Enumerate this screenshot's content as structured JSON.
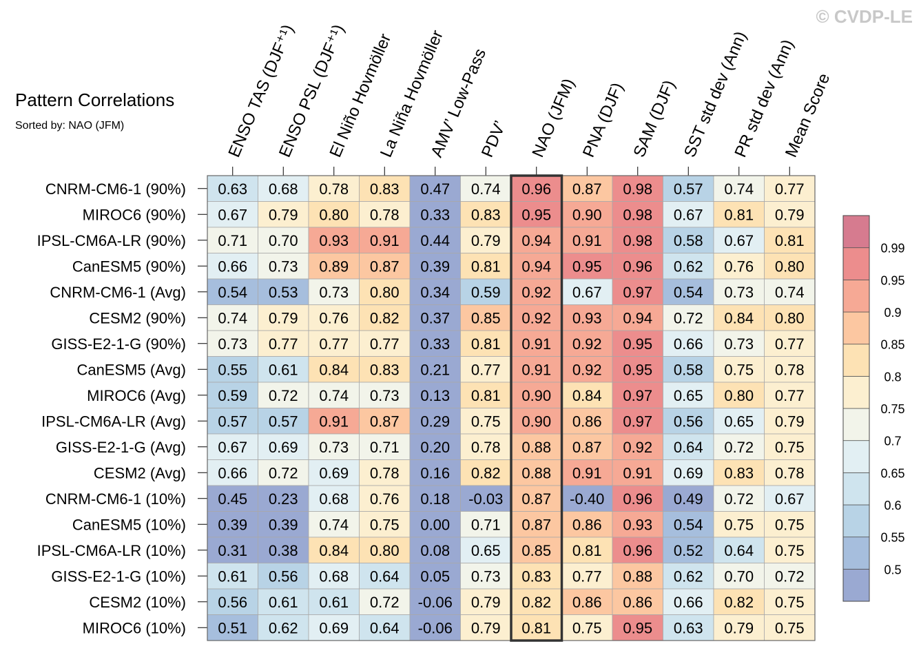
{
  "watermark": "© CVDP-LE",
  "chart_data": {
    "type": "heatmap",
    "title": "Pattern Correlations",
    "subtitle": "Sorted by: NAO (JFM)",
    "highlight_column": "NAO (JFM)",
    "columns": [
      "ENSO TAS (DJF⁺¹)",
      "ENSO PSL (DJF⁺¹)",
      "El Niño Hovmöller",
      "La Niña Hovmöller",
      "AMV’ Low-Pass",
      "PDV’",
      "NAO (JFM)",
      "PNA (DJF)",
      "SAM (DJF)",
      "SST std dev (Ann)",
      "PR std dev (Ann)",
      "Mean Score"
    ],
    "rows": [
      "CNRM-CM6-1 (90%)",
      "MIROC6 (90%)",
      "IPSL-CM6A-LR (90%)",
      "CanESM5 (90%)",
      "CNRM-CM6-1 (Avg)",
      "CESM2 (90%)",
      "GISS-E2-1-G (90%)",
      "CanESM5 (Avg)",
      "MIROC6 (Avg)",
      "IPSL-CM6A-LR (Avg)",
      "GISS-E2-1-G (Avg)",
      "CESM2 (Avg)",
      "CNRM-CM6-1 (10%)",
      "CanESM5 (10%)",
      "IPSL-CM6A-LR (10%)",
      "GISS-E2-1-G (10%)",
      "CESM2 (10%)",
      "MIROC6 (10%)"
    ],
    "values": [
      [
        "0.63",
        "0.68",
        "0.78",
        "0.83",
        "0.47",
        "0.74",
        "0.96",
        "0.87",
        "0.98",
        "0.57",
        "0.74",
        "0.77"
      ],
      [
        "0.67",
        "0.79",
        "0.80",
        "0.78",
        "0.33",
        "0.83",
        "0.95",
        "0.90",
        "0.98",
        "0.67",
        "0.81",
        "0.79"
      ],
      [
        "0.71",
        "0.70",
        "0.93",
        "0.91",
        "0.44",
        "0.79",
        "0.94",
        "0.91",
        "0.98",
        "0.58",
        "0.67",
        "0.81"
      ],
      [
        "0.66",
        "0.73",
        "0.89",
        "0.87",
        "0.39",
        "0.81",
        "0.94",
        "0.95",
        "0.96",
        "0.62",
        "0.76",
        "0.80"
      ],
      [
        "0.54",
        "0.53",
        "0.73",
        "0.80",
        "0.34",
        "0.59",
        "0.92",
        "0.67",
        "0.97",
        "0.54",
        "0.73",
        "0.74"
      ],
      [
        "0.74",
        "0.79",
        "0.76",
        "0.82",
        "0.37",
        "0.85",
        "0.92",
        "0.93",
        "0.94",
        "0.72",
        "0.84",
        "0.80"
      ],
      [
        "0.73",
        "0.77",
        "0.77",
        "0.77",
        "0.33",
        "0.81",
        "0.91",
        "0.92",
        "0.95",
        "0.66",
        "0.73",
        "0.77"
      ],
      [
        "0.55",
        "0.61",
        "0.84",
        "0.83",
        "0.21",
        "0.77",
        "0.91",
        "0.92",
        "0.95",
        "0.58",
        "0.75",
        "0.78"
      ],
      [
        "0.59",
        "0.72",
        "0.74",
        "0.73",
        "0.13",
        "0.81",
        "0.90",
        "0.84",
        "0.97",
        "0.65",
        "0.80",
        "0.77"
      ],
      [
        "0.57",
        "0.57",
        "0.91",
        "0.87",
        "0.29",
        "0.75",
        "0.90",
        "0.86",
        "0.97",
        "0.56",
        "0.65",
        "0.79"
      ],
      [
        "0.67",
        "0.69",
        "0.73",
        "0.71",
        "0.20",
        "0.78",
        "0.88",
        "0.87",
        "0.92",
        "0.64",
        "0.72",
        "0.75"
      ],
      [
        "0.66",
        "0.72",
        "0.69",
        "0.78",
        "0.16",
        "0.82",
        "0.88",
        "0.91",
        "0.91",
        "0.69",
        "0.83",
        "0.78"
      ],
      [
        "0.45",
        "0.23",
        "0.68",
        "0.76",
        "0.18",
        "-0.03",
        "0.87",
        "-0.40",
        "0.96",
        "0.49",
        "0.72",
        "0.67"
      ],
      [
        "0.39",
        "0.39",
        "0.74",
        "0.75",
        "0.00",
        "0.71",
        "0.87",
        "0.86",
        "0.93",
        "0.54",
        "0.75",
        "0.75"
      ],
      [
        "0.31",
        "0.38",
        "0.84",
        "0.80",
        "0.08",
        "0.65",
        "0.85",
        "0.81",
        "0.96",
        "0.52",
        "0.64",
        "0.75"
      ],
      [
        "0.61",
        "0.56",
        "0.68",
        "0.64",
        "0.05",
        "0.73",
        "0.83",
        "0.77",
        "0.88",
        "0.62",
        "0.70",
        "0.72"
      ],
      [
        "0.56",
        "0.61",
        "0.61",
        "0.72",
        "-0.06",
        "0.79",
        "0.82",
        "0.86",
        "0.86",
        "0.66",
        "0.82",
        "0.75"
      ],
      [
        "0.51",
        "0.62",
        "0.69",
        "0.64",
        "-0.06",
        "0.79",
        "0.81",
        "0.75",
        "0.95",
        "0.63",
        "0.79",
        "0.75"
      ]
    ],
    "colorbar": {
      "levels": [
        0.5,
        0.55,
        0.6,
        0.65,
        0.7,
        0.75,
        0.8,
        0.85,
        0.9,
        0.95,
        0.99
      ],
      "labels": [
        "0.5",
        "0.55",
        "0.6",
        "0.65",
        "0.7",
        "0.75",
        "0.8",
        "0.85",
        "0.9",
        "0.95",
        "0.99"
      ],
      "colors": [
        "#9aa9d2",
        "#a6bedd",
        "#b8d3e6",
        "#cfe4ee",
        "#e2eff3",
        "#f2f4ea",
        "#fcefd0",
        "#fde2b4",
        "#fcc7a1",
        "#f6a995",
        "#ec8d8d",
        "#d67b8f"
      ]
    }
  }
}
